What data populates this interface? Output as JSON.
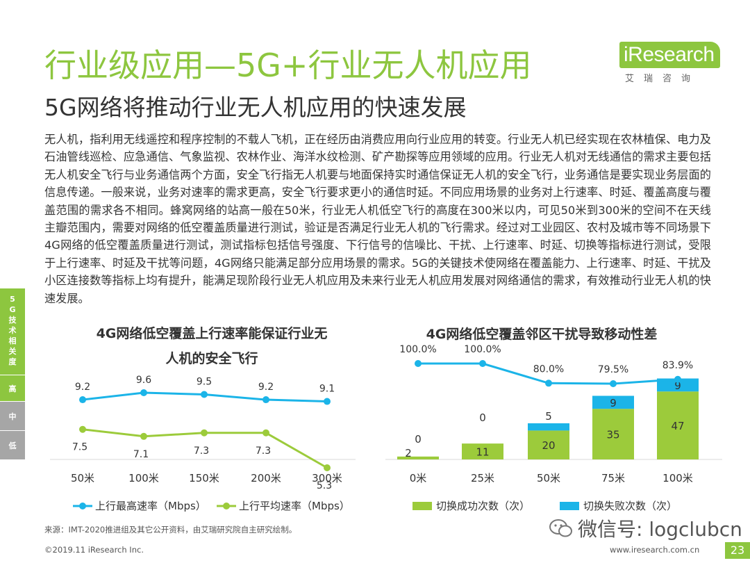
{
  "header": {
    "title": "行业级应用—5G+行业无人机应用",
    "subtitle": "5G网络将推动行业无人机应用的快速发展"
  },
  "logo": {
    "brand": "iResearch",
    "sub": "艾瑞咨询",
    "color": "#8dc63f"
  },
  "body_text": "无人机，指利用无线遥控和程序控制的不载人飞机，正在经历由消费应用向行业应用的转变。行业无人机已经实现在农林植保、电力及石油管线巡检、应急通信、气象监视、农林作业、海洋水纹检测、矿产勘探等应用领域的应用。行业无人机对无线通信的需求主要包括无人机安全飞行与业务通信两个方面，安全飞行指无人机要与地面保持实时通信保证无人机的安全飞行，业务通信是要实现业务层面的信息传递。一般来说，业务对速率的需求更高，安全飞行要求更小的通信时延。不同应用场景的业务对上行速率、时延、覆盖高度与覆盖范围的需求各不相同。蜂窝网络的站高一般在50米，行业无人机低空飞行的高度在300米以内，可见50米到300米的空间不在天线主瓣范围内，需要对网络的低空覆盖质量进行测试，验证是否满足行业无人机的飞行需求。经过对工业园区、农村及城市等不同场景下4G网络的低空覆盖质量进行测试，测试指标包括信号强度、下行信号的信噪比、干扰、上行速率、时延、切换等指标进行测试，受限于上行速率、时延及干扰等问题，4G网络只能满足部分应用场景的需求。5G的关键技术使网络在覆盖能力、上行速率、时延、干扰及小区连接数等指标上均有提升，能满足现阶段行业无人机应用及未来行业无人机应用发展对网络通信的需求，有效推动行业无人机的快速发展。",
  "side_tabs": {
    "category": "5G技术相关度",
    "levels": [
      "高",
      "中",
      "低"
    ]
  },
  "chart_data": [
    {
      "type": "line",
      "title": "4G网络低空覆盖上行速率能保证行业无人机的安全飞行",
      "title_line1": "4G网络低空覆盖上行速率能保证行业无",
      "title_line2": "人机的安全飞行",
      "categories": [
        "50米",
        "100米",
        "150米",
        "200米",
        "300米"
      ],
      "series": [
        {
          "name": "上行最高速率（Mbps）",
          "values": [
            9.2,
            9.6,
            9.5,
            9.2,
            9.1
          ],
          "color": "#1bb4e8"
        },
        {
          "name": "上行平均速率（Mbps）",
          "values": [
            7.5,
            7.1,
            7.3,
            7.3,
            5.3
          ],
          "color": "#9ccb3b"
        }
      ]
    },
    {
      "type": "bar",
      "title": "4G网络低空覆盖邻区干扰导致移动性差",
      "categories": [
        "0米",
        "25米",
        "50米",
        "75米",
        "100米"
      ],
      "series": [
        {
          "name": "切换成功次数（次）",
          "values": [
            2,
            11,
            20,
            35,
            47
          ],
          "color": "#9ccb3b"
        },
        {
          "name": "切换失败次数（次）",
          "values": [
            0,
            0,
            5,
            9,
            9
          ],
          "color": "#1bb4e8"
        }
      ],
      "line_series": {
        "values": [
          100.0,
          100.0,
          80.0,
          79.5,
          83.9
        ],
        "labels": [
          "100.0%",
          "100.0%",
          "80.0%",
          "79.5%",
          "83.9%"
        ],
        "color": "#1bb4e8"
      }
    }
  ],
  "footer": {
    "source": "来源：IMT-2020推进组及其它公开资料，由艾瑞研究院自主研究绘制。",
    "copyright": "©2019.11 iResearch Inc.",
    "website": "www.iresearch.com.cn",
    "wechat": "微信号: logclubcn",
    "page_number": "23"
  }
}
